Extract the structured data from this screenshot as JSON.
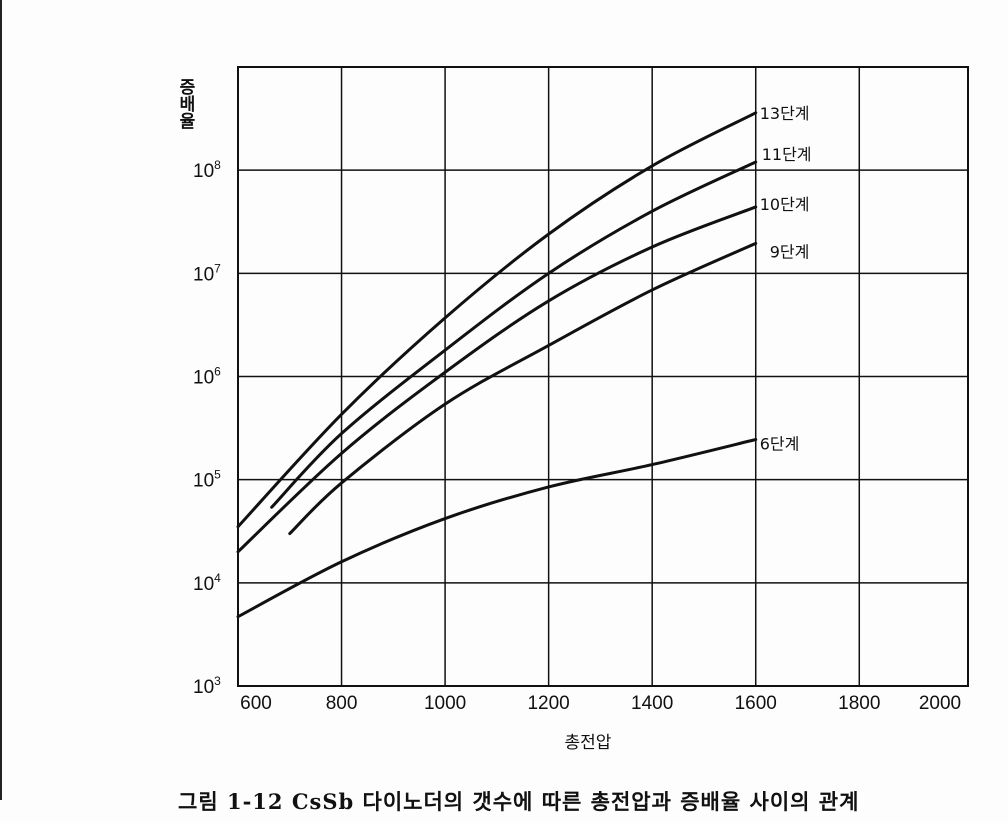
{
  "chart_data": {
    "type": "line",
    "title": "",
    "xlabel": "총전압",
    "ylabel": "증배율",
    "xlim": [
      600,
      2010
    ],
    "ylim": [
      1000,
      1000000000
    ],
    "yscale": "log",
    "grid": true,
    "x_ticks": [
      600,
      800,
      1000,
      1200,
      1400,
      1600,
      1800,
      2000
    ],
    "y_ticks": [
      {
        "base": "10",
        "exp": "3"
      },
      {
        "base": "10",
        "exp": "4"
      },
      {
        "base": "10",
        "exp": "5"
      },
      {
        "base": "10",
        "exp": "6"
      },
      {
        "base": "10",
        "exp": "7"
      },
      {
        "base": "10",
        "exp": "8"
      }
    ],
    "line_color": "#111111",
    "series": [
      {
        "name": "13단계",
        "x": [
          600,
          800,
          1000,
          1200,
          1400,
          1600
        ],
        "y": [
          35000,
          430000,
          3700000,
          24000000,
          110000000,
          360000000
        ]
      },
      {
        "name": "11단계",
        "x": [
          665,
          800,
          1000,
          1200,
          1400,
          1600
        ],
        "y": [
          54000,
          280000,
          1800000,
          10000000,
          40000000,
          120000000
        ]
      },
      {
        "name": "10단계",
        "x": [
          600,
          800,
          1000,
          1200,
          1400,
          1600
        ],
        "y": [
          20000,
          180000,
          1100000,
          5400000,
          18000000,
          44000000
        ]
      },
      {
        "name": "9단계",
        "x": [
          700,
          800,
          1000,
          1200,
          1400,
          1600
        ],
        "y": [
          30000,
          93000,
          540000,
          2000000,
          6900000,
          19500000
        ]
      },
      {
        "name": "6단계",
        "x": [
          600,
          800,
          1000,
          1200,
          1400,
          1600
        ],
        "y": [
          4700,
          16000,
          42000,
          85000,
          140000,
          245000
        ]
      }
    ]
  },
  "caption": "그림 1-12  CsSb 다이노더의 갯수에 따른 총전압과 증배율 사이의 관계"
}
